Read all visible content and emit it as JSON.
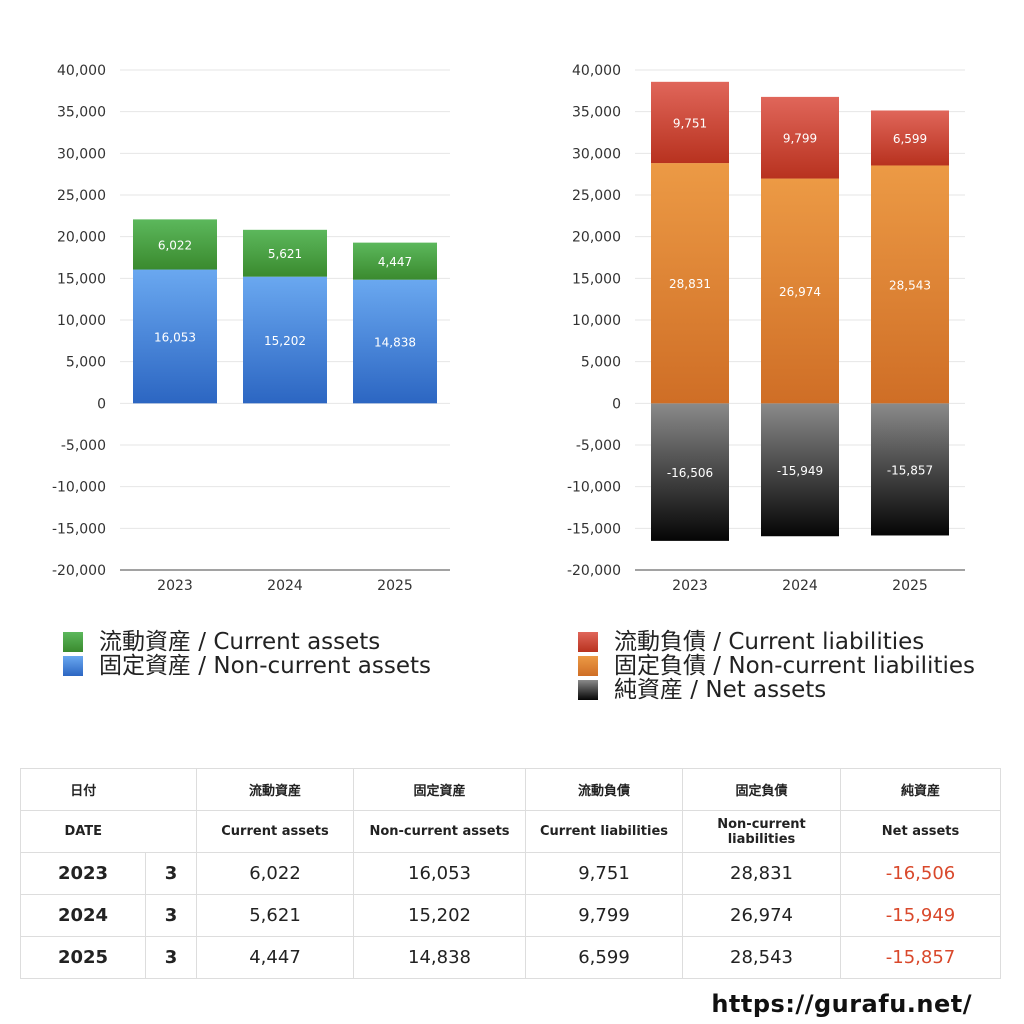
{
  "chart_data": [
    {
      "type": "bar",
      "stacked": true,
      "categories": [
        "2023",
        "2024",
        "2025"
      ],
      "yticks": [
        "40,000",
        "35,000",
        "30,000",
        "25,000",
        "20,000",
        "15,000",
        "10,000",
        "5,000",
        "0",
        "-5,000",
        "-10,000",
        "-15,000",
        "-20,000"
      ],
      "ylim": [
        -20000,
        40000
      ],
      "series": [
        {
          "name": "流動資産 / Current assets",
          "values": [
            6022,
            5621,
            4447
          ],
          "labels": [
            "6,022",
            "5,621",
            "4,447"
          ],
          "color_top": "#5cb85c",
          "color_bottom": "#3a8a2e"
        },
        {
          "name": "固定資産 / Non-current assets",
          "values": [
            16053,
            15202,
            14838
          ],
          "labels": [
            "16,053",
            "15,202",
            "14,838"
          ],
          "color_top": "#6aa8f0",
          "color_bottom": "#2c66c2"
        }
      ]
    },
    {
      "type": "bar",
      "stacked": true,
      "categories": [
        "2023",
        "2024",
        "2025"
      ],
      "yticks": [
        "40,000",
        "35,000",
        "30,000",
        "25,000",
        "20,000",
        "15,000",
        "10,000",
        "5,000",
        "0",
        "-5,000",
        "-10,000",
        "-15,000",
        "-20,000"
      ],
      "ylim": [
        -20000,
        40000
      ],
      "series": [
        {
          "name": "流動負債 / Current liabilities",
          "values": [
            9751,
            9799,
            6599
          ],
          "labels": [
            "9,751",
            "9,799",
            "6,599"
          ],
          "color_top": "#e0665a",
          "color_bottom": "#b8321f"
        },
        {
          "name": "固定負債 / Non-current liabilities",
          "values": [
            28831,
            26974,
            28543
          ],
          "labels": [
            "28,831",
            "26,974",
            "28,543"
          ],
          "color_top": "#ec9a45",
          "color_bottom": "#cf6e26"
        },
        {
          "name": "純資産 / Net assets",
          "values": [
            -16506,
            -15949,
            -15857
          ],
          "labels": [
            "-16,506",
            "-15,949",
            "-15,857"
          ],
          "color_top": "#8a8a8a",
          "color_bottom": "#050505"
        }
      ]
    }
  ],
  "legend_left": [
    {
      "label": "流動資産 / Current assets",
      "color": "#4aa63c"
    },
    {
      "label": "固定資産 / Non-current assets",
      "color": "#3f86dc"
    }
  ],
  "legend_right": [
    {
      "label": "流動負債 / Current liabilities",
      "color": "#d24b3a"
    },
    {
      "label": "固定負債 / Non-current liabilities",
      "color": "#e2843a"
    },
    {
      "label": "純資産 / Net assets",
      "color": "#333333"
    }
  ],
  "table": {
    "headers_jp": [
      "日付",
      "流動資産",
      "固定資産",
      "流動負債",
      "固定負債",
      "純資産"
    ],
    "headers_en": [
      "DATE",
      "Current assets",
      "Non-current assets",
      "Current liabilities",
      "Non-current liabilities",
      "Net assets"
    ],
    "rows": [
      {
        "year": "2023",
        "month": "3",
        "values": [
          "6,022",
          "16,053",
          "9,751",
          "28,831",
          "-16,506"
        ]
      },
      {
        "year": "2024",
        "month": "3",
        "values": [
          "5,621",
          "15,202",
          "9,799",
          "26,974",
          "-15,949"
        ]
      },
      {
        "year": "2025",
        "month": "3",
        "values": [
          "4,447",
          "14,838",
          "6,599",
          "28,543",
          "-15,857"
        ]
      }
    ]
  },
  "footer": {
    "url": "https://gurafu.net/"
  }
}
